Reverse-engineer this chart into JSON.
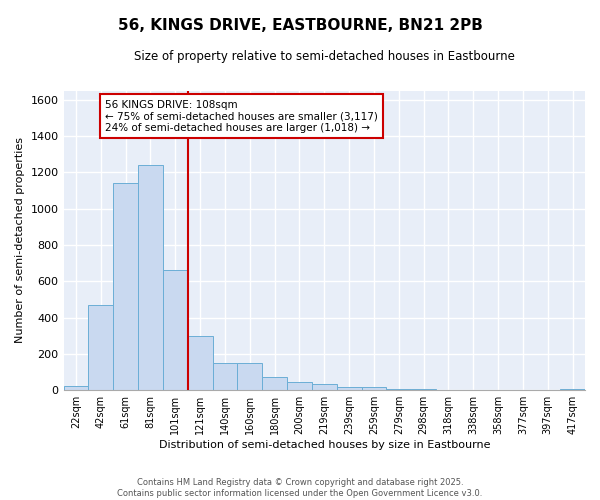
{
  "title": "56, KINGS DRIVE, EASTBOURNE, BN21 2PB",
  "subtitle": "Size of property relative to semi-detached houses in Eastbourne",
  "xlabel": "Distribution of semi-detached houses by size in Eastbourne",
  "ylabel": "Number of semi-detached properties",
  "bar_color": "#c9d9f0",
  "bar_edge_color": "#6baed6",
  "background_color": "#e8eef8",
  "grid_color": "white",
  "annotation_box_color": "#cc0000",
  "vline_color": "#cc0000",
  "categories": [
    "22sqm",
    "42sqm",
    "61sqm",
    "81sqm",
    "101sqm",
    "121sqm",
    "140sqm",
    "160sqm",
    "180sqm",
    "200sqm",
    "219sqm",
    "239sqm",
    "259sqm",
    "279sqm",
    "298sqm",
    "318sqm",
    "338sqm",
    "358sqm",
    "377sqm",
    "397sqm",
    "417sqm"
  ],
  "values": [
    25,
    470,
    1140,
    1240,
    660,
    300,
    150,
    150,
    70,
    45,
    35,
    20,
    15,
    8,
    5,
    3,
    2,
    2,
    1,
    1,
    5
  ],
  "ylim": [
    0,
    1650
  ],
  "yticks": [
    0,
    200,
    400,
    600,
    800,
    1000,
    1200,
    1400,
    1600
  ],
  "vline_x_index": 4.5,
  "annotation_text_line1": "56 KINGS DRIVE: 108sqm",
  "annotation_text_line2": "← 75% of semi-detached houses are smaller (3,117)",
  "annotation_text_line3": "24% of semi-detached houses are larger (1,018) →",
  "footer_line1": "Contains HM Land Registry data © Crown copyright and database right 2025.",
  "footer_line2": "Contains public sector information licensed under the Open Government Licence v3.0."
}
